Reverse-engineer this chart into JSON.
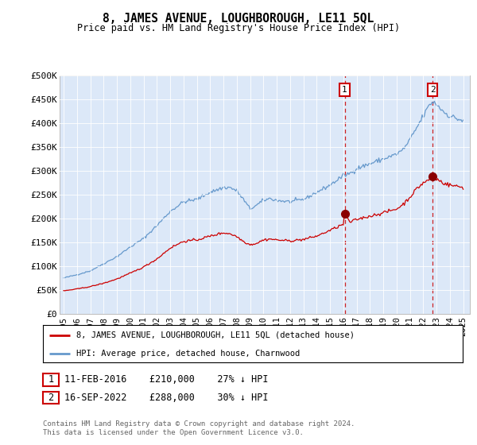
{
  "title": "8, JAMES AVENUE, LOUGHBOROUGH, LE11 5QL",
  "subtitle": "Price paid vs. HM Land Registry's House Price Index (HPI)",
  "background_color": "#ffffff",
  "plot_bg_color": "#dce8f8",
  "hpi_color": "#6699cc",
  "price_color": "#cc0000",
  "vline_color": "#cc0000",
  "ylim": [
    0,
    500000
  ],
  "ytick_labels": [
    "£0",
    "£50K",
    "£100K",
    "£150K",
    "£200K",
    "£250K",
    "£300K",
    "£350K",
    "£400K",
    "£450K",
    "£500K"
  ],
  "sale1_date": 2016.1,
  "sale1_price": 210000,
  "sale1_label": "1",
  "sale2_date": 2022.7,
  "sale2_price": 288000,
  "sale2_label": "2",
  "legend_line1": "8, JAMES AVENUE, LOUGHBOROUGH, LE11 5QL (detached house)",
  "legend_line2": "HPI: Average price, detached house, Charnwood",
  "footer": "Contains HM Land Registry data © Crown copyright and database right 2024.\nThis data is licensed under the Open Government Licence v3.0."
}
